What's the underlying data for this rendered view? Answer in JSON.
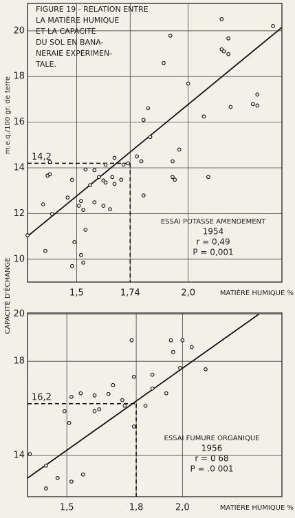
{
  "ylabel": "CAPACITÉ D'ÉCHANGE",
  "chart_data": [
    {
      "type": "scatter",
      "title": [
        "FIGURE 19 - RELATION ENTRE",
        "LA MATIÈRE HUMIQUE",
        "ET LA CAPACITÉ",
        "DU SOL EN BANA-",
        "NERAIE EXPÉRIMEN-",
        "TALE."
      ],
      "ylabel": "m.e.q./100 gr. de terre",
      "xlabel": "MATIÈRE HUMIQUE %",
      "xlim": [
        1.28,
        2.42
      ],
      "ylim": [
        9.0,
        21.2
      ],
      "xticks": [
        {
          "value": 1.5,
          "label": "1,5"
        },
        {
          "value": 1.74,
          "label": "1,74"
        },
        {
          "value": 2.0,
          "label": "2,0"
        }
      ],
      "yticks": [
        10,
        12,
        14,
        16,
        18,
        20
      ],
      "grid": true,
      "color": "#1a1a1a",
      "x": [
        1.28,
        1.36,
        1.35,
        1.37,
        1.38,
        1.39,
        1.38,
        1.46,
        1.48,
        1.49,
        1.48,
        1.52,
        1.53,
        1.51,
        1.52,
        1.53,
        1.54,
        1.54,
        1.56,
        1.58,
        1.6,
        1.62,
        1.63,
        1.63,
        1.58,
        1.62,
        1.65,
        1.66,
        1.67,
        1.67,
        1.7,
        1.71,
        1.73,
        1.77,
        1.79,
        1.8,
        1.82,
        1.8,
        1.83,
        1.89,
        1.92,
        1.93,
        1.93,
        1.94,
        1.96,
        2.0,
        2.07,
        2.09,
        2.15,
        2.15,
        2.16,
        2.18,
        2.18,
        2.19,
        2.29,
        2.31,
        2.31,
        2.38
      ],
      "y": [
        11.05,
        10.36,
        12.4,
        13.66,
        13.72,
        11.98,
        14.26,
        12.7,
        13.48,
        10.75,
        9.7,
        10.18,
        9.85,
        12.34,
        12.55,
        12.16,
        11.29,
        13.93,
        13.24,
        13.9,
        13.6,
        13.45,
        13.36,
        14.14,
        12.49,
        12.34,
        12.19,
        13.6,
        14.44,
        13.3,
        13.48,
        14.14,
        14.2,
        14.5,
        14.29,
        16.1,
        16.61,
        12.79,
        15.35,
        18.59,
        19.79,
        14.29,
        13.6,
        13.48,
        14.8,
        17.69,
        16.25,
        13.6,
        20.51,
        19.19,
        19.1,
        19.67,
        18.98,
        16.67,
        16.79,
        16.73,
        17.21,
        20.21
      ],
      "fit_line": {
        "x": [
          1.28,
          2.42
        ],
        "y": [
          11.0,
          20.15
        ]
      },
      "reference": {
        "value": 14.2,
        "label": "14,2",
        "x": 1.74
      },
      "legend_box": [
        "ESSAI POTASSE AMENDEMENT",
        "1954",
        "r = 0,49",
        "P = 0,001"
      ]
    },
    {
      "type": "scatter",
      "xlabel": "MATIÈRE HUMIQUE %",
      "xlim": [
        1.33,
        2.43
      ],
      "ylim": [
        12.25,
        20.05
      ],
      "xticks": [
        {
          "value": 1.5,
          "label": "1,5"
        },
        {
          "value": 1.8,
          "label": "1,8"
        },
        {
          "value": 2.0,
          "label": "2,0"
        }
      ],
      "yticks": [
        14,
        18,
        20
      ],
      "grid": true,
      "color": "#1a1a1a",
      "x": [
        1.34,
        1.41,
        1.41,
        1.46,
        1.49,
        1.51,
        1.52,
        1.52,
        1.56,
        1.57,
        1.62,
        1.64,
        1.62,
        1.68,
        1.7,
        1.74,
        1.75,
        1.78,
        1.79,
        1.79,
        1.84,
        1.87,
        1.87,
        1.93,
        1.95,
        1.96,
        2.0,
        1.99,
        2.04,
        2.1
      ],
      "y": [
        14.06,
        13.57,
        12.6,
        13.04,
        15.88,
        15.38,
        16.49,
        12.89,
        16.64,
        13.19,
        15.88,
        15.96,
        16.55,
        16.61,
        16.99,
        16.35,
        16.11,
        18.89,
        17.34,
        15.23,
        16.11,
        16.84,
        17.43,
        16.64,
        18.89,
        18.39,
        18.89,
        17.72,
        18.6,
        17.66
      ],
      "fit_line": {
        "x": [
          1.33,
          2.33
        ],
        "y": [
          13.04,
          20.0
        ]
      },
      "reference": {
        "value": 16.2,
        "label": "16,2",
        "x": 1.8
      },
      "legend_box": [
        "ESSAI FUMURE ORGANIQUE",
        "1956",
        "r = 0 68",
        "P = .0 001"
      ]
    }
  ]
}
